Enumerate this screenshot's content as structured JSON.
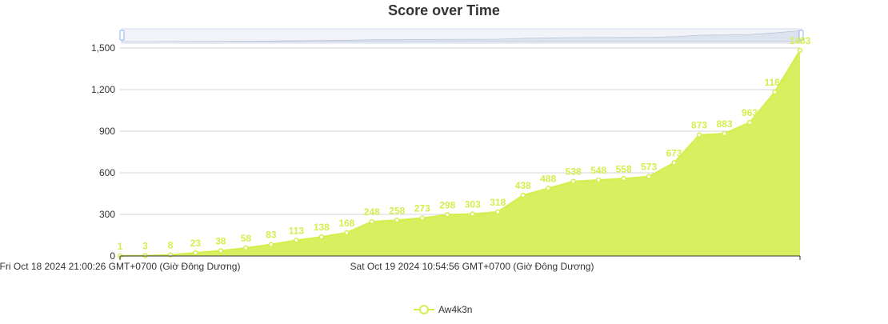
{
  "chart_data": {
    "type": "area",
    "title": "Score over Time",
    "xlabel": "",
    "ylabel": "",
    "ylim": [
      0,
      1500
    ],
    "yticks": [
      "0",
      "300",
      "600",
      "900",
      "1,200",
      "1,500"
    ],
    "xtick_labels": [
      "Fri Oct 18 2024 21:00:26 GMT+0700 (Giờ Đông Dương)",
      "Sat Oct 19 2024 10:54:56 GMT+0700 (Giờ Đông Dương)"
    ],
    "grid": true,
    "legend_position": "bottom-center",
    "data_zoom_slider": "top",
    "series": [
      {
        "name": "Aw4k3n",
        "color": "#d4ee4e",
        "values": [
          1,
          3,
          8,
          23,
          38,
          58,
          83,
          113,
          138,
          168,
          248,
          258,
          273,
          298,
          303,
          318,
          438,
          488,
          538,
          548,
          558,
          573,
          673,
          873,
          883,
          963,
          1183,
          1483
        ],
        "labels": [
          "1",
          "3",
          "8",
          "23",
          "38",
          "58",
          "83",
          "113",
          "138",
          "168",
          "248",
          "258",
          "273",
          "298",
          "303",
          "318",
          "438",
          "488",
          "538",
          "548",
          "558",
          "573",
          "673",
          "873",
          "883",
          "963",
          "1183",
          "1483"
        ]
      }
    ]
  }
}
